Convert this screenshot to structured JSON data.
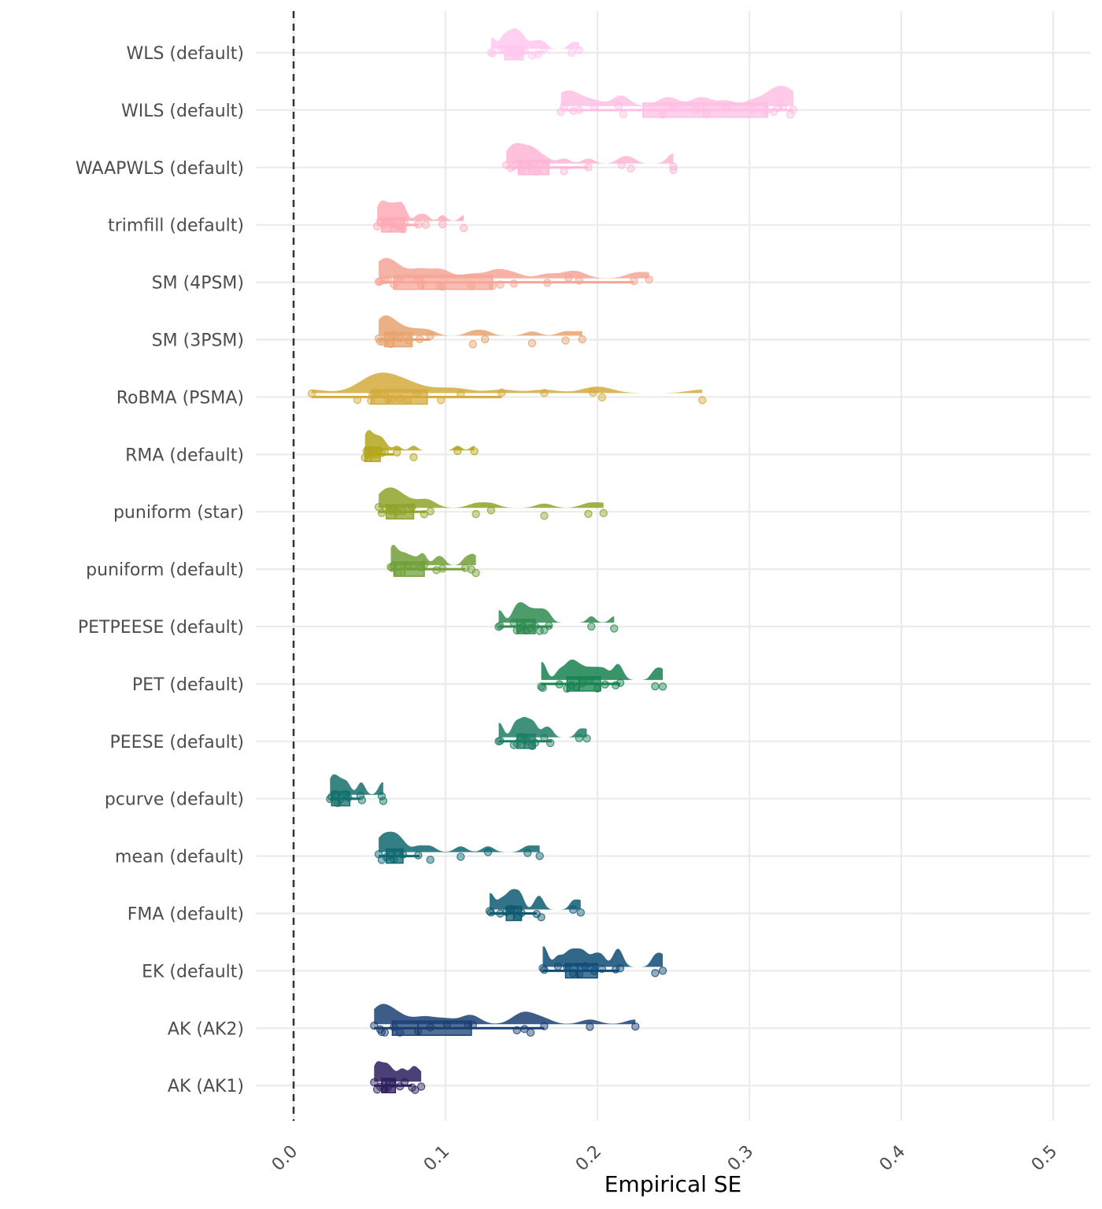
{
  "chart_data": {
    "type": "raincloud",
    "title": "",
    "xlabel": "Empirical SE",
    "ylabel": "",
    "xlim": [
      0.0,
      0.5
    ],
    "xticks": [
      0.0,
      0.1,
      0.2,
      0.3,
      0.4,
      0.5
    ],
    "xtick_labels": [
      "0.0",
      "0.1",
      "0.2",
      "0.3",
      "0.4",
      "0.5"
    ],
    "grid": true,
    "legend": "none",
    "reference_line": {
      "x": 0.0,
      "style": "dashed",
      "color": "#333333"
    },
    "categories": [
      "WLS (default)",
      "WILS (default)",
      "WAAPWLS (default)",
      "trimfill (default)",
      "SM (4PSM)",
      "SM (3PSM)",
      "RoBMA (PSMA)",
      "RMA (default)",
      "puniform (star)",
      "puniform (default)",
      "PETPEESE (default)",
      "PET (default)",
      "PEESE (default)",
      "pcurve (default)",
      "mean (default)",
      "FMA (default)",
      "EK (default)",
      "AK (AK2)",
      "AK (AK1)"
    ],
    "series": [
      {
        "name": "WLS (default)",
        "color": "#FFC8EE",
        "box": {
          "min": 0.13,
          "q1": 0.139,
          "median": 0.145,
          "q3": 0.151,
          "max": 0.165
        },
        "points": [
          0.13,
          0.131,
          0.137,
          0.139,
          0.141,
          0.143,
          0.145,
          0.146,
          0.148,
          0.15,
          0.152,
          0.157,
          0.161,
          0.165,
          0.183,
          0.188
        ]
      },
      {
        "name": "WILS (default)",
        "color": "#FFBFE4",
        "box": {
          "min": 0.176,
          "q1": 0.23,
          "median": 0.27,
          "q3": 0.312,
          "max": 0.329
        },
        "points": [
          0.176,
          0.178,
          0.184,
          0.188,
          0.198,
          0.214,
          0.217,
          0.243,
          0.25,
          0.265,
          0.272,
          0.285,
          0.302,
          0.311,
          0.316,
          0.319,
          0.322,
          0.327,
          0.329
        ]
      },
      {
        "name": "WAAPWLS (default)",
        "color": "#FFB5D6",
        "box": {
          "min": 0.14,
          "q1": 0.148,
          "median": 0.155,
          "q3": 0.168,
          "max": 0.194
        },
        "points": [
          0.14,
          0.143,
          0.145,
          0.147,
          0.15,
          0.152,
          0.155,
          0.158,
          0.16,
          0.166,
          0.178,
          0.194,
          0.216,
          0.222,
          0.25,
          0.25
        ]
      },
      {
        "name": "trimfill (default)",
        "color": "#FFAAB6",
        "box": {
          "min": 0.055,
          "q1": 0.058,
          "median": 0.064,
          "q3": 0.073,
          "max": 0.082
        },
        "points": [
          0.055,
          0.057,
          0.058,
          0.06,
          0.062,
          0.064,
          0.066,
          0.068,
          0.07,
          0.072,
          0.073,
          0.082,
          0.087,
          0.098,
          0.112
        ]
      },
      {
        "name": "SM (4PSM)",
        "color": "#F6A596",
        "box": {
          "min": 0.056,
          "q1": 0.066,
          "median": 0.085,
          "q3": 0.131,
          "max": 0.224
        },
        "points": [
          0.056,
          0.057,
          0.06,
          0.062,
          0.066,
          0.07,
          0.082,
          0.084,
          0.096,
          0.098,
          0.117,
          0.131,
          0.136,
          0.145,
          0.167,
          0.181,
          0.188,
          0.224,
          0.234
        ]
      },
      {
        "name": "SM (3PSM)",
        "color": "#E6A36E",
        "box": {
          "min": 0.056,
          "q1": 0.06,
          "median": 0.066,
          "q3": 0.078,
          "max": 0.09
        },
        "points": [
          0.056,
          0.057,
          0.059,
          0.061,
          0.064,
          0.066,
          0.07,
          0.076,
          0.083,
          0.09,
          0.118,
          0.126,
          0.157,
          0.179,
          0.19
        ]
      },
      {
        "name": "RoBMA (PSMA)",
        "color": "#D4AA3C",
        "box": {
          "min": 0.012,
          "q1": 0.051,
          "median": 0.062,
          "q3": 0.088,
          "max": 0.137
        },
        "points": [
          0.012,
          0.042,
          0.051,
          0.052,
          0.055,
          0.058,
          0.062,
          0.065,
          0.07,
          0.075,
          0.081,
          0.097,
          0.11,
          0.137,
          0.165,
          0.197,
          0.203,
          0.269
        ]
      },
      {
        "name": "RMA (default)",
        "color": "#B3A61B",
        "box": {
          "min": 0.047,
          "q1": 0.047,
          "median": 0.051,
          "q3": 0.057,
          "max": 0.066
        },
        "points": [
          0.047,
          0.048,
          0.049,
          0.05,
          0.052,
          0.054,
          0.056,
          0.058,
          0.06,
          0.068,
          0.079,
          0.108,
          0.119
        ]
      },
      {
        "name": "puniform (star)",
        "color": "#8FA32A",
        "box": {
          "min": 0.056,
          "q1": 0.061,
          "median": 0.067,
          "q3": 0.079,
          "max": 0.087
        },
        "points": [
          0.056,
          0.058,
          0.061,
          0.064,
          0.066,
          0.068,
          0.072,
          0.078,
          0.086,
          0.09,
          0.12,
          0.13,
          0.165,
          0.194,
          0.204
        ]
      },
      {
        "name": "puniform (default)",
        "color": "#72A03A",
        "box": {
          "min": 0.064,
          "q1": 0.066,
          "median": 0.073,
          "q3": 0.086,
          "max": 0.113
        },
        "points": [
          0.064,
          0.065,
          0.066,
          0.069,
          0.072,
          0.075,
          0.079,
          0.084,
          0.086,
          0.094,
          0.098,
          0.113,
          0.117,
          0.12
        ]
      },
      {
        "name": "PETPEESE (default)",
        "color": "#2E8B50",
        "box": {
          "min": 0.135,
          "q1": 0.147,
          "median": 0.152,
          "q3": 0.159,
          "max": 0.17
        },
        "points": [
          0.135,
          0.136,
          0.145,
          0.147,
          0.149,
          0.151,
          0.153,
          0.156,
          0.159,
          0.162,
          0.165,
          0.168,
          0.196,
          0.211
        ]
      },
      {
        "name": "PET (default)",
        "color": "#16834F",
        "box": {
          "min": 0.163,
          "q1": 0.18,
          "median": 0.188,
          "q3": 0.202,
          "max": 0.215
        },
        "points": [
          0.163,
          0.164,
          0.175,
          0.18,
          0.183,
          0.186,
          0.19,
          0.195,
          0.2,
          0.205,
          0.212,
          0.215,
          0.238,
          0.243
        ]
      },
      {
        "name": "PEESE (default)",
        "color": "#1E7E64",
        "box": {
          "min": 0.135,
          "q1": 0.147,
          "median": 0.152,
          "q3": 0.159,
          "max": 0.17
        },
        "points": [
          0.135,
          0.136,
          0.145,
          0.147,
          0.15,
          0.152,
          0.154,
          0.157,
          0.159,
          0.165,
          0.169,
          0.188,
          0.193
        ]
      },
      {
        "name": "pcurve (default)",
        "color": "#15706C",
        "box": {
          "min": 0.024,
          "q1": 0.025,
          "median": 0.03,
          "q3": 0.037,
          "max": 0.044
        },
        "points": [
          0.024,
          0.025,
          0.027,
          0.029,
          0.031,
          0.034,
          0.036,
          0.044,
          0.045,
          0.058,
          0.059
        ]
      },
      {
        "name": "mean (default)",
        "color": "#106870",
        "box": {
          "min": 0.056,
          "q1": 0.061,
          "median": 0.066,
          "q3": 0.072,
          "max": 0.083
        },
        "points": [
          0.056,
          0.058,
          0.061,
          0.064,
          0.066,
          0.069,
          0.072,
          0.082,
          0.09,
          0.11,
          0.128,
          0.154,
          0.162
        ]
      },
      {
        "name": "FMA (default)",
        "color": "#0E5A72",
        "box": {
          "min": 0.129,
          "q1": 0.14,
          "median": 0.145,
          "q3": 0.15,
          "max": 0.16
        },
        "points": [
          0.129,
          0.13,
          0.136,
          0.14,
          0.143,
          0.145,
          0.148,
          0.15,
          0.16,
          0.163,
          0.184,
          0.189
        ]
      },
      {
        "name": "EK (default)",
        "color": "#0F4C75",
        "box": {
          "min": 0.164,
          "q1": 0.179,
          "median": 0.187,
          "q3": 0.2,
          "max": 0.214
        },
        "points": [
          0.164,
          0.165,
          0.174,
          0.18,
          0.184,
          0.188,
          0.192,
          0.198,
          0.203,
          0.212,
          0.215,
          0.238,
          0.243
        ]
      },
      {
        "name": "AK (AK2)",
        "color": "#1B3F72",
        "box": {
          "min": 0.053,
          "q1": 0.065,
          "median": 0.082,
          "q3": 0.117,
          "max": 0.165
        },
        "points": [
          0.053,
          0.057,
          0.058,
          0.06,
          0.066,
          0.07,
          0.082,
          0.09,
          0.101,
          0.115,
          0.118,
          0.147,
          0.152,
          0.156,
          0.165,
          0.195,
          0.225
        ]
      },
      {
        "name": "AK (AK1)",
        "color": "#2E1F5E",
        "box": {
          "min": 0.053,
          "q1": 0.058,
          "median": 0.061,
          "q3": 0.067,
          "max": 0.078
        },
        "points": [
          0.053,
          0.055,
          0.057,
          0.06,
          0.062,
          0.065,
          0.07,
          0.073,
          0.078,
          0.08,
          0.084
        ]
      }
    ]
  }
}
